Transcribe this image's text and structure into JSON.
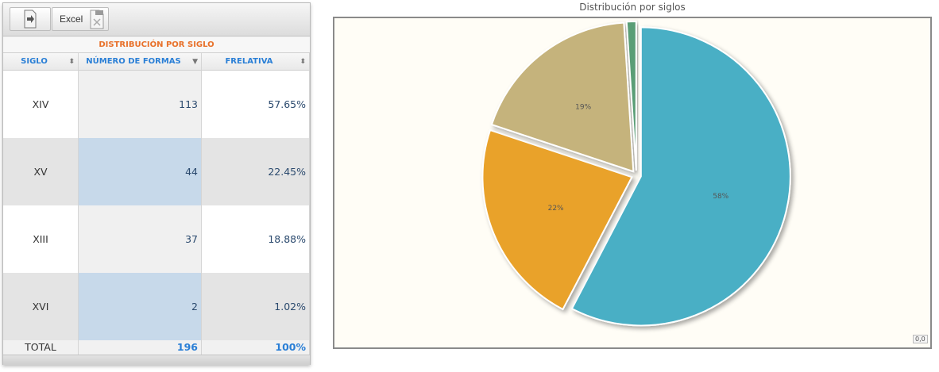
{
  "toolbar": {
    "excel_label": "Excel"
  },
  "grid": {
    "caption": "DISTRIBUCIÓN POR SIGLO",
    "columns": [
      {
        "label": "SIGLO",
        "sort": "both"
      },
      {
        "label": "NÚMERO DE FORMAS",
        "sort": "desc"
      },
      {
        "label": "FRELATIVA",
        "sort": "both"
      }
    ],
    "rows": [
      {
        "siglo": "XIV",
        "formas": "113",
        "frelativa": "57.65%"
      },
      {
        "siglo": "XV",
        "formas": "44",
        "frelativa": "22.45%"
      },
      {
        "siglo": "XIII",
        "formas": "37",
        "frelativa": "18.88%"
      },
      {
        "siglo": "XVI",
        "formas": "2",
        "frelativa": "1.02%"
      }
    ],
    "total": {
      "label": "TOTAL",
      "formas": "196",
      "frelativa": "100%"
    }
  },
  "chart_data": {
    "type": "pie",
    "title": "Distribución por siglos",
    "slices": [
      {
        "label": "58%",
        "value": 57.65,
        "color": "#4aafc5"
      },
      {
        "label": "22%",
        "value": 22.45,
        "color": "#e9a22b"
      },
      {
        "label": "19%",
        "value": 18.88,
        "color": "#c5b37c"
      },
      {
        "label": "",
        "value": 1.02,
        "color": "#5a9e76"
      }
    ],
    "zoom_label": "0,0"
  },
  "colors": {
    "accent": "#2a7fd6",
    "caption": "#e8712a",
    "row_highlight": "#c7d9ea"
  }
}
